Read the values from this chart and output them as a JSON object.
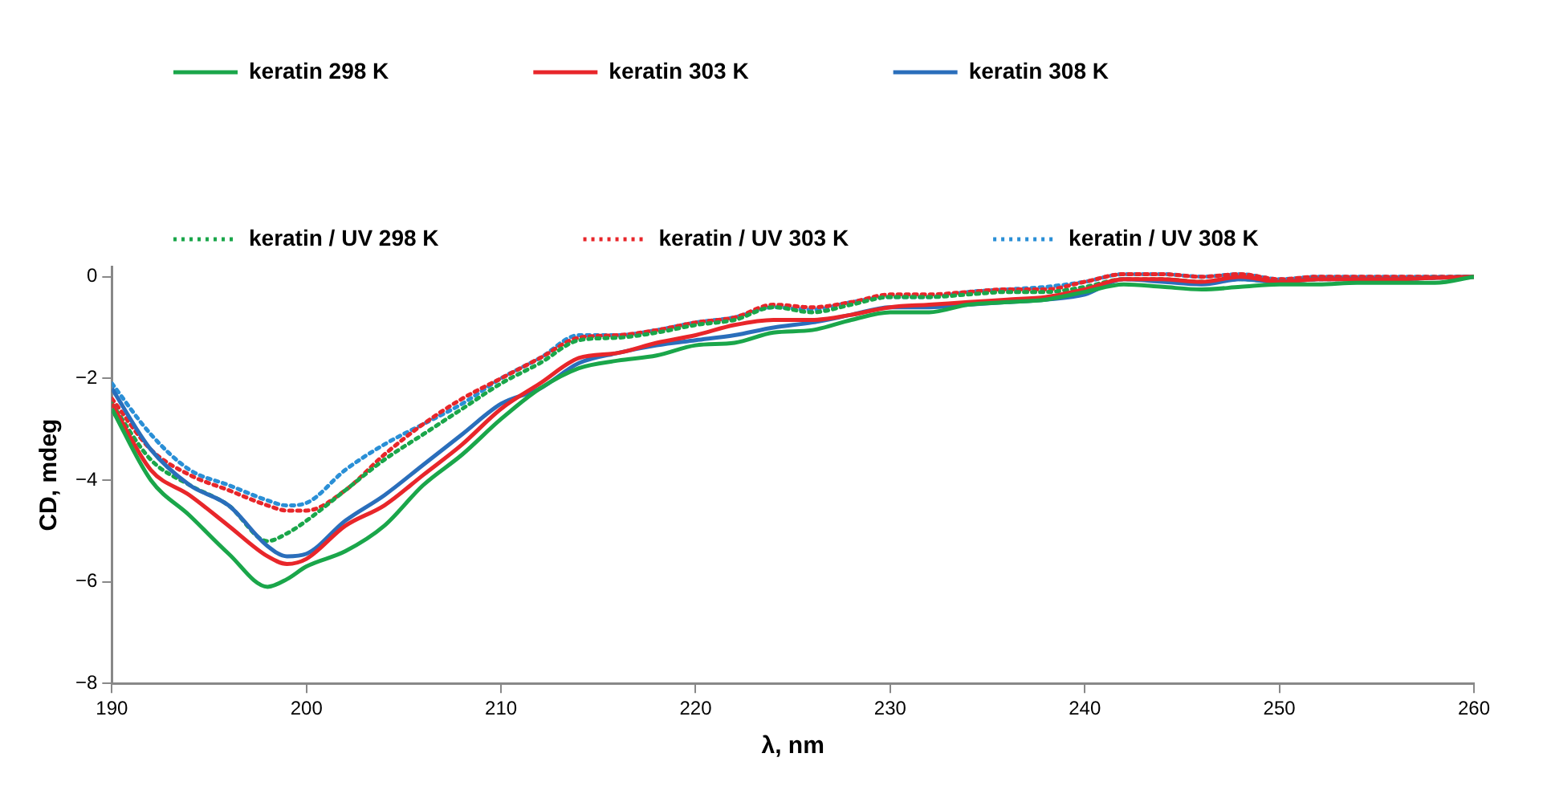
{
  "chart_data": {
    "type": "line",
    "xlabel": "λ, nm",
    "ylabel": "CD, mdeg",
    "x": [
      190,
      192,
      194,
      196,
      198,
      199,
      200,
      202,
      204,
      206,
      208,
      210,
      212,
      214,
      216,
      218,
      220,
      222,
      224,
      226,
      228,
      230,
      232,
      234,
      236,
      238,
      240,
      242,
      244,
      246,
      248,
      250,
      252,
      254,
      256,
      258,
      260
    ],
    "xlim": [
      190,
      260
    ],
    "xticks": [
      190,
      200,
      210,
      220,
      230,
      240,
      250,
      260
    ],
    "ylim": [
      -8,
      0.2
    ],
    "yticks": [
      -8,
      -6,
      -4,
      -2,
      0
    ],
    "grid": false,
    "legend": "top",
    "marker": "none",
    "series": [
      {
        "name": "keratin 298 K",
        "color": "#1aa64a",
        "line_style": "solid",
        "values": [
          -2.6,
          -4.0,
          -4.7,
          -5.45,
          -6.1,
          -5.95,
          -5.7,
          -5.4,
          -4.9,
          -4.1,
          -3.5,
          -2.8,
          -2.2,
          -1.8,
          -1.65,
          -1.55,
          -1.35,
          -1.3,
          -1.1,
          -1.05,
          -0.85,
          -0.7,
          -0.7,
          -0.55,
          -0.5,
          -0.45,
          -0.3,
          -0.15,
          -0.2,
          -0.25,
          -0.2,
          -0.15,
          -0.15,
          -0.12,
          -0.12,
          -0.12,
          0
        ]
      },
      {
        "name": "keratin 303 K",
        "color": "#e8262a",
        "line_style": "solid",
        "values": [
          -2.5,
          -3.8,
          -4.3,
          -4.9,
          -5.5,
          -5.65,
          -5.55,
          -4.9,
          -4.5,
          -3.9,
          -3.3,
          -2.6,
          -2.1,
          -1.6,
          -1.5,
          -1.3,
          -1.15,
          -0.95,
          -0.85,
          -0.85,
          -0.75,
          -0.6,
          -0.55,
          -0.5,
          -0.45,
          -0.4,
          -0.25,
          -0.05,
          -0.05,
          -0.1,
          0,
          -0.1,
          -0.05,
          -0.05,
          -0.05,
          -0.02,
          0
        ]
      },
      {
        "name": "keratin 308 K",
        "color": "#2a6ebb",
        "line_style": "solid",
        "values": [
          -2.2,
          -3.4,
          -4.1,
          -4.5,
          -5.3,
          -5.5,
          -5.45,
          -4.8,
          -4.3,
          -3.7,
          -3.1,
          -2.5,
          -2.2,
          -1.7,
          -1.5,
          -1.35,
          -1.25,
          -1.15,
          -1.0,
          -0.9,
          -0.75,
          -0.6,
          -0.6,
          -0.55,
          -0.5,
          -0.45,
          -0.35,
          -0.05,
          -0.1,
          -0.15,
          -0.05,
          -0.1,
          -0.05,
          -0.05,
          -0.05,
          -0.02,
          0
        ]
      },
      {
        "name": "keratin / UV 298 K",
        "color": "#1aa64a",
        "line_style": "dotted",
        "values": [
          -2.5,
          -3.6,
          -4.1,
          -4.5,
          -5.2,
          -5.05,
          -4.8,
          -4.2,
          -3.6,
          -3.1,
          -2.6,
          -2.1,
          -1.7,
          -1.25,
          -1.2,
          -1.1,
          -0.95,
          -0.85,
          -0.6,
          -0.7,
          -0.55,
          -0.4,
          -0.4,
          -0.35,
          -0.3,
          -0.3,
          -0.2,
          -0.05,
          -0.05,
          -0.1,
          -0.05,
          -0.1,
          -0.05,
          -0.05,
          -0.05,
          -0.02,
          0
        ]
      },
      {
        "name": "keratin / UV 303 K",
        "color": "#e8262a",
        "line_style": "dotted",
        "values": [
          -2.4,
          -3.4,
          -3.9,
          -4.2,
          -4.5,
          -4.6,
          -4.6,
          -4.2,
          -3.5,
          -2.9,
          -2.4,
          -2.0,
          -1.6,
          -1.2,
          -1.15,
          -1.05,
          -0.9,
          -0.8,
          -0.55,
          -0.6,
          -0.5,
          -0.35,
          -0.35,
          -0.3,
          -0.25,
          -0.25,
          -0.1,
          0.05,
          0.05,
          0,
          0.05,
          -0.05,
          0,
          0,
          0,
          0,
          0
        ]
      },
      {
        "name": "keratin / UV 308 K",
        "color": "#2a8fd6",
        "line_style": "dotted",
        "values": [
          -2.1,
          -3.1,
          -3.8,
          -4.1,
          -4.4,
          -4.5,
          -4.45,
          -3.8,
          -3.3,
          -2.9,
          -2.5,
          -2.0,
          -1.6,
          -1.15,
          -1.15,
          -1.05,
          -0.9,
          -0.8,
          -0.6,
          -0.65,
          -0.5,
          -0.4,
          -0.4,
          -0.3,
          -0.25,
          -0.2,
          -0.1,
          0.05,
          0.05,
          0,
          0.05,
          -0.05,
          0,
          0,
          0,
          0,
          0
        ]
      }
    ]
  }
}
